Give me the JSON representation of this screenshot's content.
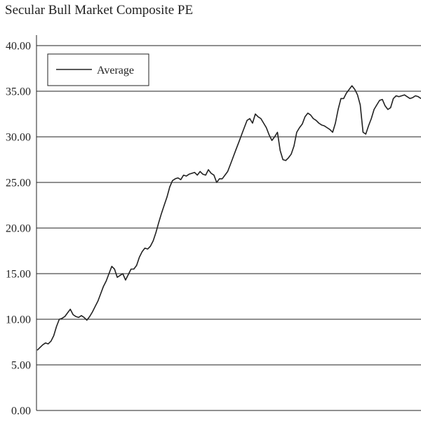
{
  "chart_data": {
    "type": "line",
    "title": "Secular Bull Market Composite PE",
    "xlabel": "",
    "ylabel": "",
    "ylim": [
      0,
      40
    ],
    "y_ticks": [
      "0.00",
      "5.00",
      "10.00",
      "15.00",
      "20.00",
      "25.00",
      "30.00",
      "35.00",
      "40.00"
    ],
    "grid": "horizontal",
    "legend_position": "top-left",
    "series": [
      {
        "name": "Average",
        "color": "#222222",
        "x": [
          0,
          2,
          4,
          6,
          8,
          10,
          12,
          14,
          16,
          18,
          20,
          22,
          24,
          26,
          28,
          30,
          32,
          34,
          36,
          38,
          40,
          42,
          44,
          46,
          48,
          50,
          52,
          54,
          56,
          58,
          60,
          62,
          64,
          66,
          68,
          70,
          72,
          74,
          76,
          78,
          80,
          82,
          84,
          86,
          88,
          90,
          92,
          94,
          96,
          98,
          100,
          102,
          104,
          106,
          108,
          110,
          112,
          114,
          116,
          118,
          120,
          122,
          124,
          126,
          128,
          130,
          132,
          134,
          136,
          138,
          140,
          142,
          144,
          146,
          148,
          150,
          152,
          154,
          156,
          158,
          160,
          162,
          164,
          166,
          168,
          170,
          172,
          174,
          176,
          178,
          180,
          182,
          184,
          186,
          188,
          190,
          192,
          194,
          196,
          198,
          200,
          202,
          204,
          206,
          208,
          210,
          212,
          214,
          216,
          218,
          220,
          222,
          224,
          226,
          228,
          230,
          232,
          234,
          236,
          238,
          240,
          242,
          244,
          246,
          248,
          250,
          252,
          254,
          256,
          258,
          260,
          262,
          264,
          266,
          268,
          270,
          272,
          274,
          276,
          278
        ],
        "values": [
          6.6,
          6.9,
          7.2,
          7.4,
          7.3,
          7.6,
          8.2,
          9.2,
          10.0,
          10.1,
          10.3,
          10.7,
          11.1,
          10.5,
          10.3,
          10.2,
          10.4,
          10.2,
          9.9,
          10.3,
          10.8,
          11.4,
          12.0,
          12.8,
          13.6,
          14.2,
          15.0,
          15.8,
          15.5,
          14.6,
          14.8,
          15.0,
          14.3,
          14.9,
          15.5,
          15.5,
          15.9,
          16.8,
          17.4,
          17.8,
          17.7,
          18.0,
          18.6,
          19.5,
          20.6,
          21.6,
          22.5,
          23.4,
          24.5,
          25.2,
          25.4,
          25.5,
          25.3,
          25.8,
          25.7,
          25.9,
          26.0,
          26.1,
          25.8,
          26.2,
          25.9,
          25.8,
          26.4,
          26.0,
          25.8,
          25.0,
          25.4,
          25.4,
          25.8,
          26.2,
          27.0,
          27.8,
          28.6,
          29.4,
          30.2,
          31.0,
          31.8,
          32.0,
          31.5,
          32.5,
          32.2,
          32.0,
          31.5,
          31.0,
          30.2,
          29.6,
          30.0,
          30.5,
          28.5,
          27.5,
          27.4,
          27.7,
          28.1,
          29.0,
          30.5,
          31.0,
          31.4,
          32.2,
          32.6,
          32.4,
          32.0,
          31.8,
          31.5,
          31.3,
          31.2,
          31.0,
          30.8,
          30.5,
          31.5,
          33.0,
          34.2,
          34.2,
          34.8,
          35.2,
          35.6,
          35.2,
          34.6,
          33.5,
          30.5,
          30.3,
          31.2,
          32.0,
          33.0,
          33.5,
          34.0,
          34.1,
          33.4,
          33.0,
          33.2,
          34.2,
          34.5,
          34.4,
          34.5,
          34.6,
          34.4,
          34.2,
          34.3,
          34.5,
          34.4,
          34.2
        ]
      }
    ]
  }
}
